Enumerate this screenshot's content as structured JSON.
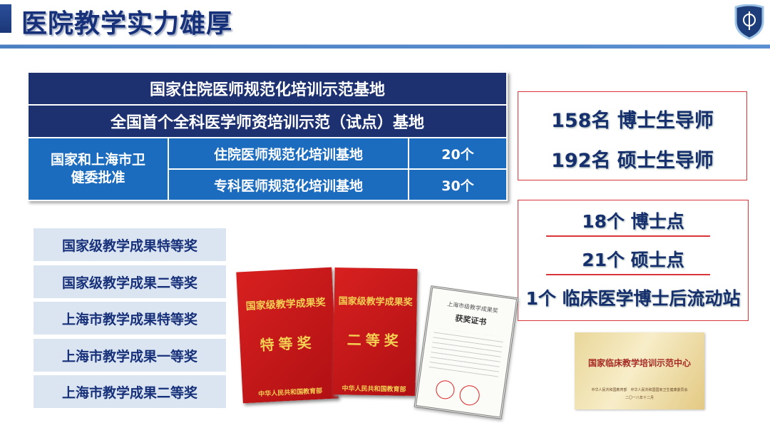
{
  "header": {
    "title": "医院教学实力雄厚",
    "logo_icon": "hospital-shield-logo"
  },
  "table": {
    "row1": "国家住院医师规范化培训示范基地",
    "row2": "全国首个全科医学师资培训示范（试点）基地",
    "approver": "国家和上海市卫健委批准",
    "items": [
      {
        "name": "住院医师规范化培训基地",
        "count": "20个"
      },
      {
        "name": "专科医师规范化培训基地",
        "count": "30个"
      }
    ]
  },
  "supervisors": [
    "158名 博士生导师",
    "192名 硕士生导师"
  ],
  "degree_points": [
    "18个 博士点",
    "21个 硕士点",
    "1个 临床医学博士后流动站"
  ],
  "awards": [
    "国家级教学成果特等奖",
    "国家级教学成果二等奖",
    "上海市教学成果特等奖",
    "上海市教学成果一等奖",
    "上海市教学成果二等奖"
  ],
  "photos": {
    "cover1": {
      "title": "国家级教学成果奖",
      "grade": "特等奖",
      "issuer": "中华人民共和国教育部"
    },
    "cover2": {
      "title": "国家级教学成果奖",
      "grade": "二等奖",
      "issuer": "中华人民共和国教育部"
    },
    "certificate": {
      "title": "上海市级教学成果奖",
      "subtitle": "获奖证书"
    },
    "plaque": {
      "title": "国家临床教学培训示范中心",
      "issuer": "中华人民共和国教育部　中华人民共和国国家卫生健康委员会",
      "date": "二〇一八年十二月"
    }
  },
  "colors": {
    "navy": "#1d3170",
    "blue": "#1b6cbf",
    "red": "#d8363a",
    "award_bg": "#dbe5f1"
  }
}
